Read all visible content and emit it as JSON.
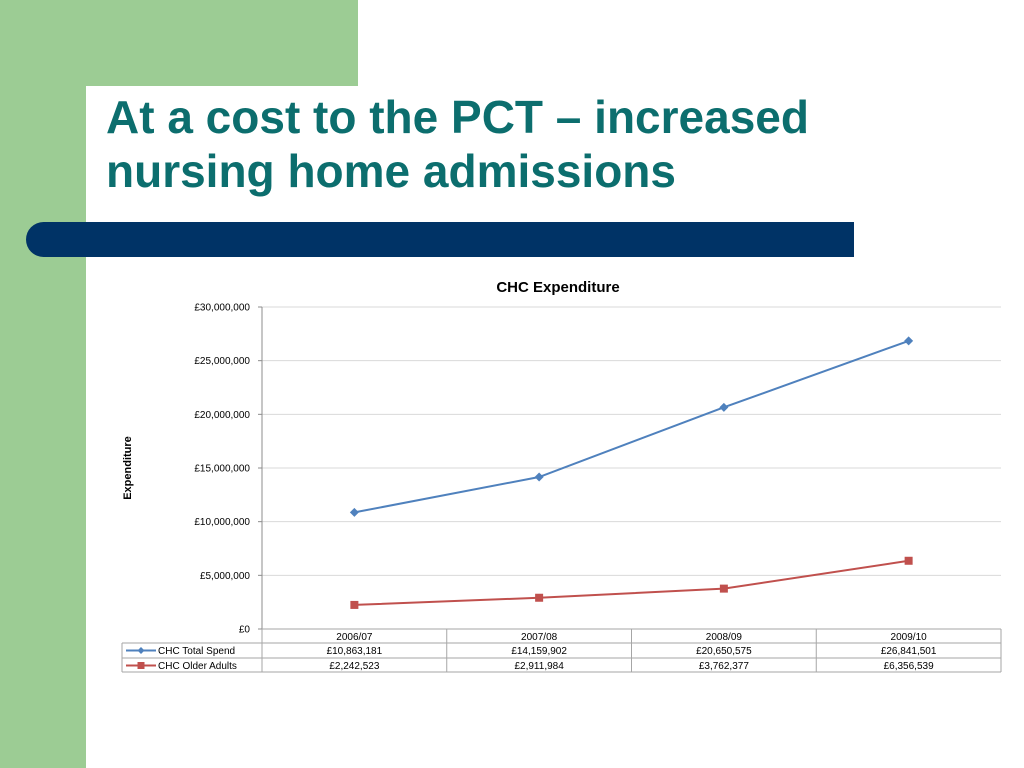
{
  "slide": {
    "title_line1": "At a cost to the PCT – increased",
    "title_line2": "nursing home admissions"
  },
  "colors": {
    "green": "#9ccc94",
    "navy": "#003366",
    "title": "#0c6e6e",
    "series_total": "#4f81bd",
    "series_older": "#c0504d"
  },
  "chart_data": {
    "type": "line",
    "title": "CHC Expenditure",
    "ylabel": "Expenditure",
    "xlabel": "",
    "categories": [
      "2006/07",
      "2007/08",
      "2008/09",
      "2009/10"
    ],
    "ylim": [
      0,
      30000000
    ],
    "yticks": [
      0,
      5000000,
      10000000,
      15000000,
      20000000,
      25000000,
      30000000
    ],
    "ytick_labels": [
      "£0",
      "£5,000,000",
      "£10,000,000",
      "£15,000,000",
      "£20,000,000",
      "£25,000,000",
      "£30,000,000"
    ],
    "grid": true,
    "legend": "data-table",
    "series": [
      {
        "name": "CHC Total Spend",
        "values": [
          10863181,
          14159902,
          20650575,
          26841501
        ],
        "value_labels": [
          "£10,863,181",
          "£14,159,902",
          "£20,650,575",
          "£26,841,501"
        ],
        "color": "#4f81bd",
        "marker": "diamond"
      },
      {
        "name": "CHC Older Adults",
        "values": [
          2242523,
          2911984,
          3762377,
          6356539
        ],
        "value_labels": [
          "£2,242,523",
          "£2,911,984",
          "£3,762,377",
          "£6,356,539"
        ],
        "color": "#c0504d",
        "marker": "square"
      }
    ]
  }
}
